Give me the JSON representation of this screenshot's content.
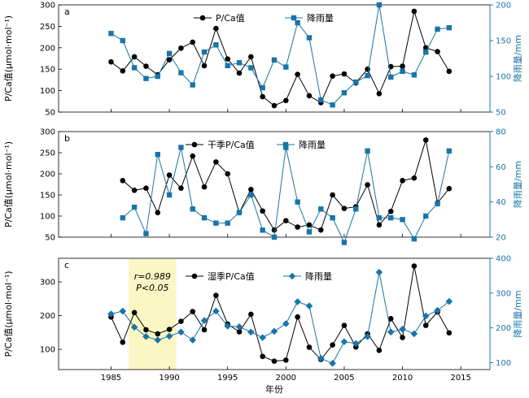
{
  "chart_data": [
    {
      "type": "line",
      "panel_label": "a",
      "ylabel_left": "P/Ca值(μmol·mol⁻¹)",
      "ylabel_right": "降雨量/mm",
      "left_ylim": [
        50,
        300
      ],
      "left_yticks": [
        50,
        100,
        150,
        200,
        250,
        300
      ],
      "right_ylim": [
        50,
        200
      ],
      "right_yticks": [
        50,
        100,
        150,
        200
      ],
      "x": [
        1985,
        1986,
        1987,
        1988,
        1989,
        1990,
        1991,
        1992,
        1993,
        1994,
        1995,
        1996,
        1997,
        1998,
        1999,
        2000,
        2001,
        2002,
        2003,
        2004,
        2005,
        2006,
        2007,
        2008,
        2009,
        2010,
        2011,
        2012,
        2013,
        2014
      ],
      "series": [
        {
          "name": "P/Ca值",
          "axis": "left",
          "marker": "circle",
          "color": "#000000",
          "values": [
            167,
            146,
            179,
            157,
            137,
            172,
            199,
            213,
            158,
            245,
            174,
            141,
            179,
            86,
            65,
            77,
            138,
            88,
            72,
            134,
            139,
            118,
            150,
            93,
            156,
            157,
            285,
            200,
            191,
            145
          ]
        },
        {
          "name": "降雨量",
          "axis": "right",
          "marker": "square",
          "color": "#1a74a8",
          "values": [
            160,
            150,
            112,
            97,
            100,
            132,
            105,
            88,
            134,
            144,
            115,
            119,
            112,
            84,
            123,
            113,
            175,
            154,
            67,
            60,
            77,
            92,
            101,
            200,
            99,
            107,
            102,
            134,
            166,
            168
          ]
        }
      ]
    },
    {
      "type": "line",
      "panel_label": "b",
      "ylabel_left": "P/Ca值(μmol·mol⁻¹)",
      "ylabel_right": "降雨量/mm",
      "left_ylim": [
        50,
        300
      ],
      "left_yticks": [
        50,
        100,
        150,
        200,
        250,
        300
      ],
      "right_ylim": [
        20,
        80
      ],
      "right_yticks": [
        20,
        40,
        60,
        80
      ],
      "x": [
        1986,
        1987,
        1988,
        1989,
        1990,
        1991,
        1992,
        1993,
        1994,
        1995,
        1996,
        1997,
        1998,
        1999,
        2000,
        2001,
        2002,
        2003,
        2004,
        2005,
        2006,
        2007,
        2008,
        2009,
        2010,
        2011,
        2012,
        2013,
        2014
      ],
      "series": [
        {
          "name": "干季P/Ca值",
          "axis": "left",
          "marker": "circle",
          "color": "#000000",
          "values": [
            184,
            161,
            166,
            108,
            197,
            166,
            242,
            169,
            228,
            200,
            108,
            163,
            112,
            67,
            89,
            74,
            79,
            67,
            150,
            118,
            122,
            174,
            79,
            111,
            184,
            190,
            280,
            131,
            165
          ]
        },
        {
          "name": "降雨量",
          "axis": "right",
          "marker": "square",
          "color": "#1a74a8",
          "values": [
            31,
            37,
            22,
            67,
            44,
            71,
            36,
            31,
            28,
            28,
            34,
            44,
            24,
            20,
            71,
            40,
            23,
            36,
            31,
            17,
            36,
            69,
            31,
            31,
            30,
            19,
            32,
            39,
            69
          ]
        }
      ]
    },
    {
      "type": "line",
      "panel_label": "c",
      "ylabel_left": "P/Ca值(μmol·mol⁻¹)",
      "ylabel_right": "降雨量/mm",
      "xlabel": "年份",
      "left_ylim": [
        40,
        370
      ],
      "left_yticks": [
        100,
        200,
        300
      ],
      "right_ylim": [
        80,
        400
      ],
      "right_yticks": [
        100,
        200,
        300,
        400
      ],
      "xticks": [
        1985,
        1990,
        1995,
        2000,
        2005,
        2010,
        2015
      ],
      "highlight": {
        "x0": 1986.5,
        "x1": 1990.6,
        "color": "#fbf7c5",
        "r_text": "r=0.989",
        "p_text": "P<0.05"
      },
      "x": [
        1985,
        1986,
        1987,
        1988,
        1989,
        1990,
        1991,
        1992,
        1993,
        1994,
        1995,
        1996,
        1997,
        1998,
        1999,
        2000,
        2001,
        2002,
        2003,
        2004,
        2005,
        2006,
        2007,
        2008,
        2009,
        2010,
        2011,
        2012,
        2013,
        2014
      ],
      "series": [
        {
          "name": "湿季P/Ca值",
          "axis": "left",
          "marker": "circle",
          "color": "#000000",
          "values": [
            196,
            121,
            209,
            158,
            146,
            159,
            183,
            212,
            158,
            260,
            175,
            152,
            204,
            79,
            65,
            68,
            196,
            106,
            70,
            113,
            171,
            107,
            146,
            97,
            191,
            135,
            347,
            171,
            211,
            149
          ]
        },
        {
          "name": "降雨量",
          "axis": "right",
          "marker": "diamond",
          "color": "#1a74a8",
          "values": [
            240,
            248,
            202,
            175,
            165,
            176,
            188,
            165,
            221,
            248,
            205,
            203,
            188,
            172,
            190,
            212,
            275,
            263,
            112,
            98,
            160,
            155,
            175,
            360,
            188,
            196,
            183,
            234,
            250,
            276
          ]
        }
      ]
    }
  ]
}
